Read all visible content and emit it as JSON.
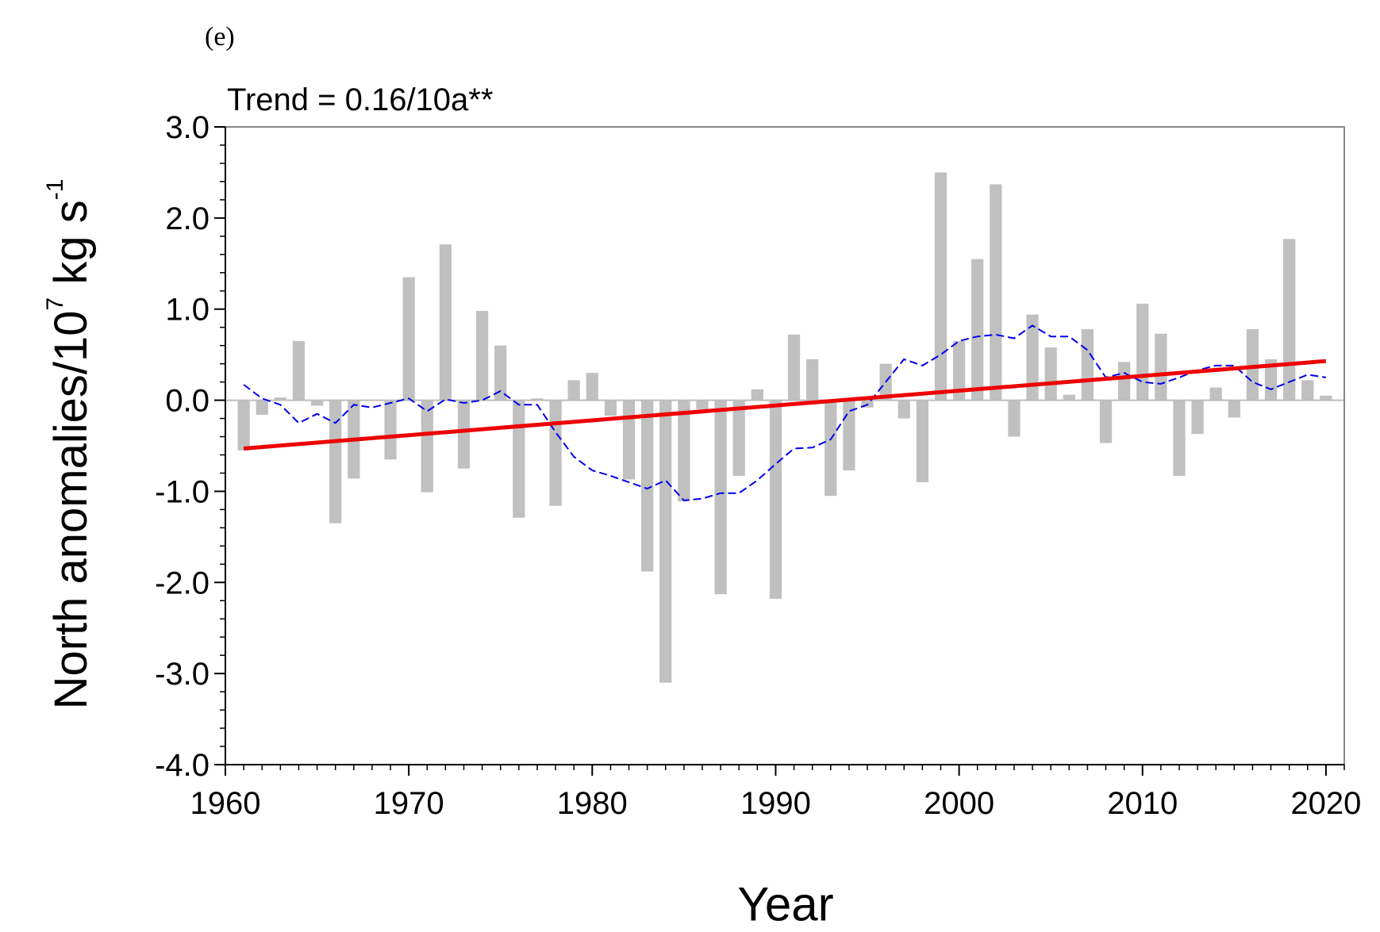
{
  "panel_label": "(e)",
  "chart_data": {
    "type": "bar",
    "title": "",
    "annotation": "Trend = 0.16/10a**",
    "xlabel": "Year",
    "ylabel": {
      "main": "North anomalies/10",
      "exp1": "7",
      "unit": " kg s",
      "exp2": "-1"
    },
    "xlim": [
      1960,
      2021
    ],
    "ylim": [
      -4.0,
      3.0
    ],
    "xticks": [
      1960,
      1970,
      1980,
      1990,
      2000,
      2010,
      2020
    ],
    "yticks": [
      3.0,
      2.0,
      1.0,
      0.0,
      -1.0,
      -2.0,
      -3.0,
      -4.0
    ],
    "ytick_labels": [
      "3.0",
      "2.0",
      "1.0",
      "0.0",
      "-1.0",
      "-2.0",
      "-3.0",
      "-4.0"
    ],
    "colors": {
      "bars": "#c0c0c0",
      "trend": "#ee0000",
      "smooth": "#0000ee",
      "axis": "#000000",
      "zero_line": "#bdbdbd"
    },
    "series": [
      {
        "name": "North anomalies",
        "type": "bar",
        "x": [
          1961,
          1962,
          1963,
          1964,
          1965,
          1966,
          1967,
          1968,
          1969,
          1970,
          1971,
          1972,
          1973,
          1974,
          1975,
          1976,
          1977,
          1978,
          1979,
          1980,
          1981,
          1982,
          1983,
          1984,
          1985,
          1986,
          1987,
          1988,
          1989,
          1990,
          1991,
          1992,
          1993,
          1994,
          1995,
          1996,
          1997,
          1998,
          1999,
          2000,
          2001,
          2002,
          2003,
          2004,
          2005,
          2006,
          2007,
          2008,
          2009,
          2010,
          2011,
          2012,
          2013,
          2014,
          2015,
          2016,
          2017,
          2018,
          2019,
          2020
        ],
        "values": [
          -0.55,
          -0.16,
          0.03,
          0.65,
          -0.06,
          -1.35,
          -0.86,
          0.0,
          -0.65,
          1.35,
          -1.01,
          1.71,
          -0.75,
          0.98,
          0.6,
          -1.29,
          0.02,
          -1.16,
          0.22,
          0.3,
          -0.17,
          -0.87,
          -1.88,
          -3.1,
          -1.11,
          -0.1,
          -2.13,
          -0.83,
          0.12,
          -2.18,
          0.72,
          0.45,
          -1.05,
          -0.77,
          -0.08,
          0.4,
          -0.2,
          -0.9,
          2.5,
          0.65,
          1.55,
          2.37,
          -0.4,
          0.94,
          0.58,
          0.06,
          0.78,
          -0.47,
          0.42,
          1.06,
          0.73,
          -0.83,
          -0.37,
          0.14,
          -0.19,
          0.78,
          0.45,
          1.77,
          0.22,
          0.05
        ]
      },
      {
        "name": "Trend",
        "type": "line",
        "x": [
          1961,
          2020
        ],
        "values": [
          -0.53,
          0.43
        ]
      },
      {
        "name": "Smoothed",
        "type": "line",
        "style": "dashed",
        "x": [
          1961,
          1962,
          1963,
          1964,
          1965,
          1966,
          1967,
          1968,
          1969,
          1970,
          1971,
          1972,
          1973,
          1974,
          1975,
          1976,
          1977,
          1978,
          1979,
          1980,
          1981,
          1982,
          1983,
          1984,
          1985,
          1986,
          1987,
          1988,
          1989,
          1990,
          1991,
          1992,
          1993,
          1994,
          1995,
          1996,
          1997,
          1998,
          1999,
          2000,
          2001,
          2002,
          2003,
          2004,
          2005,
          2006,
          2007,
          2008,
          2009,
          2010,
          2011,
          2012,
          2013,
          2014,
          2015,
          2016,
          2017,
          2018,
          2019,
          2020
        ],
        "values": [
          0.17,
          0.02,
          -0.05,
          -0.25,
          -0.15,
          -0.25,
          -0.05,
          -0.08,
          -0.03,
          0.02,
          -0.12,
          0.01,
          -0.03,
          0.0,
          0.1,
          -0.05,
          -0.05,
          -0.35,
          -0.62,
          -0.77,
          -0.83,
          -0.9,
          -0.97,
          -0.88,
          -1.1,
          -1.08,
          -1.02,
          -1.02,
          -0.88,
          -0.7,
          -0.53,
          -0.52,
          -0.43,
          -0.12,
          -0.05,
          0.2,
          0.45,
          0.38,
          0.5,
          0.65,
          0.7,
          0.72,
          0.68,
          0.82,
          0.7,
          0.7,
          0.55,
          0.25,
          0.3,
          0.2,
          0.18,
          0.25,
          0.33,
          0.38,
          0.38,
          0.2,
          0.12,
          0.2,
          0.28,
          0.25
        ]
      }
    ]
  }
}
